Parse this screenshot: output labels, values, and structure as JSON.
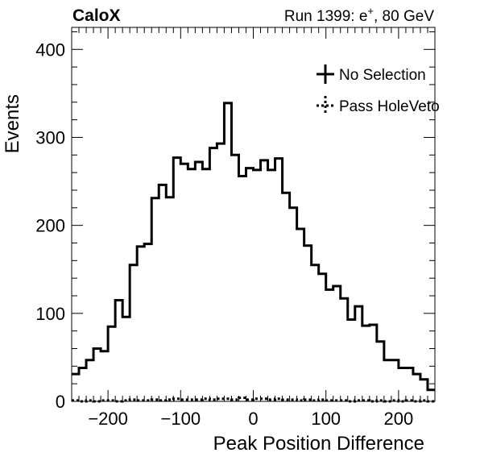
{
  "header": {
    "experiment": "CaloX",
    "run_prefix": "Run 1399: e",
    "run_sup": "+",
    "run_suffix": ", 80 GeV"
  },
  "chart_data": {
    "type": "histogram",
    "xlabel": "Peak Position Difference",
    "ylabel": "Events",
    "xlim": [
      -250,
      250
    ],
    "ylim": [
      0,
      425
    ],
    "xticks": [
      -200,
      -100,
      0,
      100,
      200
    ],
    "xtick_labels": [
      "−200",
      "−100",
      "0",
      "100",
      "200"
    ],
    "yticks": [
      0,
      100,
      200,
      300,
      400
    ],
    "ytick_labels": [
      "0",
      "100",
      "200",
      "300",
      "400"
    ],
    "bin_width": 10,
    "grid": false,
    "legend_position": "top-right",
    "series": [
      {
        "name": "No Selection",
        "style": "solid",
        "bin_edges_start": -250,
        "values": [
          31,
          38,
          47,
          60,
          57,
          85,
          115,
          96,
          155,
          176,
          179,
          231,
          246,
          232,
          277,
          270,
          264,
          272,
          264,
          288,
          293,
          339,
          280,
          256,
          265,
          263,
          274,
          263,
          276,
          237,
          220,
          196,
          177,
          155,
          145,
          127,
          131,
          117,
          93,
          108,
          86,
          87,
          68,
          47,
          47,
          38,
          38,
          31,
          25,
          13
        ]
      },
      {
        "name": "Pass HoleVeto",
        "style": "dotted",
        "bin_edges_start": -250,
        "values": [
          1,
          0,
          1,
          0,
          1,
          1,
          0,
          1,
          2,
          1,
          1,
          2,
          1,
          2,
          3,
          2,
          2,
          2,
          3,
          2,
          3,
          3,
          2,
          4,
          2,
          3,
          3,
          2,
          3,
          2,
          2,
          1,
          2,
          1,
          2,
          1,
          1,
          1,
          0,
          1,
          1,
          0,
          1,
          0,
          1,
          0,
          1,
          0,
          1,
          0
        ]
      }
    ]
  }
}
